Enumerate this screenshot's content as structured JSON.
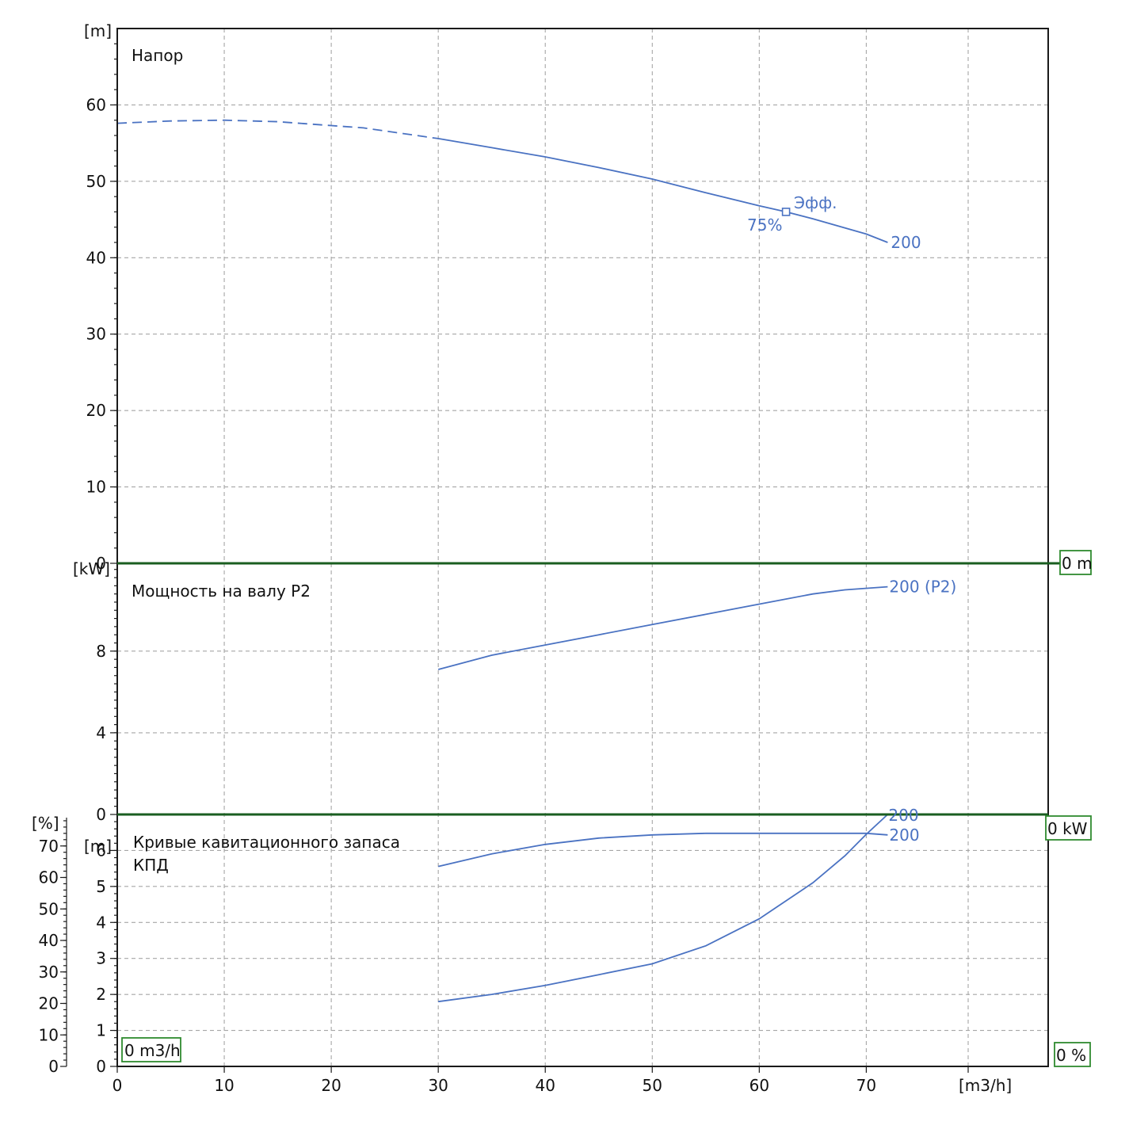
{
  "chart_data": [
    {
      "type": "line",
      "title": "Напор",
      "ylabel": "[m]",
      "xlabel": "[m3/h]",
      "xlim": [
        0,
        87
      ],
      "ylim": [
        0,
        70
      ],
      "y_ticks": [
        0,
        10,
        20,
        30,
        40,
        50,
        60
      ],
      "x_ticks": [
        0,
        10,
        20,
        30,
        40,
        50,
        60,
        70
      ],
      "grid": true,
      "series": [
        {
          "name": "200",
          "x": [
            0,
            5,
            10,
            15,
            20,
            23,
            30,
            35,
            40,
            45,
            50,
            55,
            60,
            62.5,
            65,
            70,
            72
          ],
          "y": [
            57.6,
            57.9,
            58.0,
            57.8,
            57.3,
            57.0,
            55.6,
            54.4,
            53.2,
            51.8,
            50.3,
            48.5,
            46.8,
            46.0,
            45.1,
            43.1,
            42.0
          ],
          "dashed_below_x": 30
        }
      ],
      "annotations": [
        {
          "text": "Эфф.",
          "x": 62.5,
          "y": 46.0
        },
        {
          "text": "75%",
          "x": 62.5,
          "y": 46.0
        }
      ],
      "readout": "0 m"
    },
    {
      "type": "line",
      "title": "Мощность на валу P2",
      "ylabel": "[kW]",
      "xlim": [
        0,
        87
      ],
      "ylim": [
        0,
        12.3
      ],
      "y_ticks": [
        0,
        4,
        8
      ],
      "grid": true,
      "series": [
        {
          "name": "200 (P2)",
          "x": [
            30,
            35,
            40,
            45,
            50,
            55,
            60,
            65,
            68,
            72
          ],
          "y": [
            7.1,
            7.8,
            8.3,
            8.8,
            9.3,
            9.8,
            10.3,
            10.8,
            11.0,
            11.15
          ]
        }
      ],
      "readout": "0 kW"
    },
    {
      "type": "line",
      "title": "Кривые кавитационного запаса",
      "subtitle": "КПД",
      "ylabel_left": "[%]",
      "ylabel_right": "[m]",
      "xlim": [
        0,
        87
      ],
      "ylim_percent": [
        0,
        80
      ],
      "ylim_m": [
        0,
        7
      ],
      "percent_ticks": [
        0,
        10,
        20,
        30,
        40,
        50,
        60,
        70
      ],
      "m_ticks": [
        0,
        1,
        2,
        3,
        4,
        5,
        6
      ],
      "grid": true,
      "series": [
        {
          "name": "200",
          "unit": "%",
          "x": [
            30,
            35,
            40,
            45,
            50,
            55,
            60,
            65,
            70,
            72
          ],
          "y": [
            63.5,
            67.5,
            70.5,
            72.5,
            73.5,
            74.0,
            74.0,
            74.0,
            74.0,
            73.5
          ]
        },
        {
          "name": "200",
          "unit": "m",
          "x": [
            30,
            35,
            40,
            45,
            50,
            55,
            60,
            65,
            68,
            70,
            72
          ],
          "y": [
            1.8,
            2.0,
            2.25,
            2.55,
            2.85,
            3.35,
            4.1,
            5.1,
            5.85,
            6.45,
            7.0
          ]
        }
      ],
      "readout_flow": "0 m3/h",
      "readout_percent": "0 %"
    }
  ],
  "colors": {
    "curve": "#4a72c2",
    "grid": "#a6a6a6",
    "frame": "#1a1a1a",
    "separator": "#1a5e20",
    "readout_border": "#2f8a2f"
  }
}
